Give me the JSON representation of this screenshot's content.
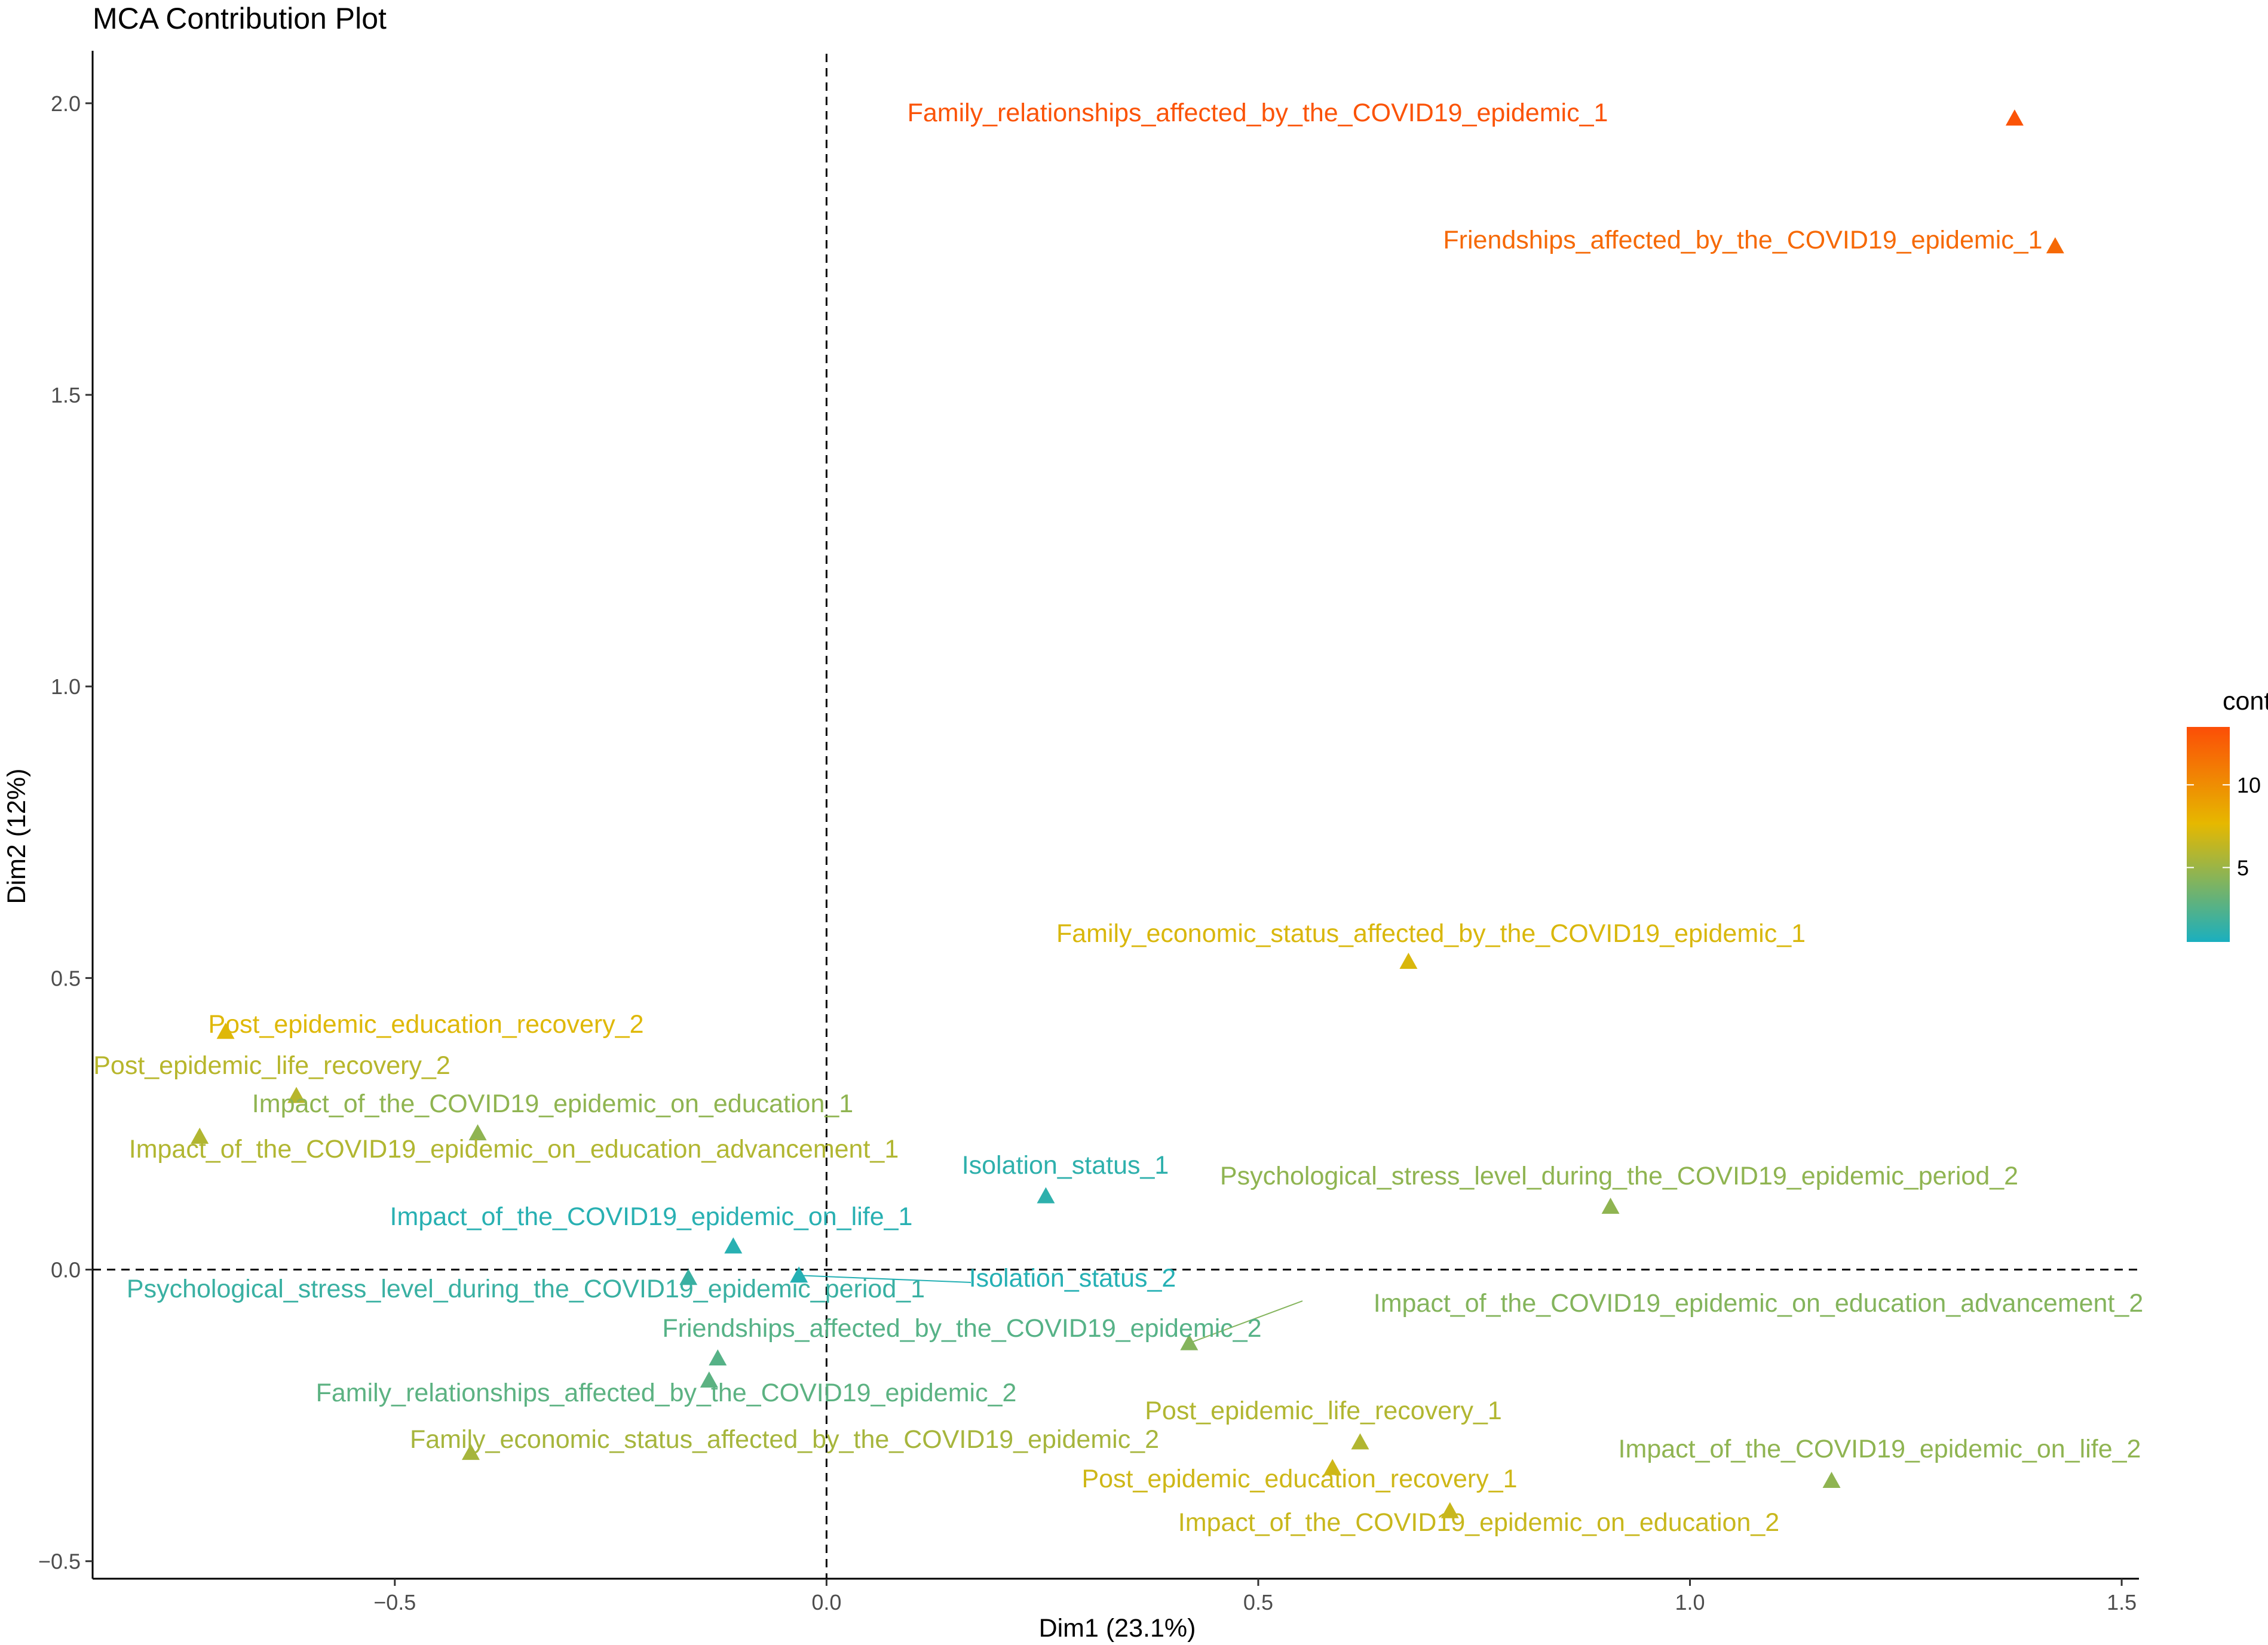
{
  "chart_data": {
    "type": "scatter",
    "title": "MCA Contribution Plot",
    "xlabel": "Dim1 (23.1%)",
    "ylabel": "Dim2 (12%)",
    "xlim": [
      -0.85,
      1.52
    ],
    "ylim": [
      -0.53,
      2.09
    ],
    "xticks": [
      -0.5,
      0.0,
      0.5,
      1.0,
      1.5
    ],
    "xtick_labels": [
      "−0.5",
      "0.0",
      "0.5",
      "1.0",
      "1.5"
    ],
    "yticks": [
      -0.5,
      0.0,
      0.5,
      1.0,
      1.5,
      2.0
    ],
    "ytick_labels": [
      "−0.5",
      "0.0",
      "0.5",
      "1.0",
      "1.5",
      "2.0"
    ],
    "reference_lines": {
      "x": 0,
      "y": 0,
      "style": "dashed"
    },
    "grid": false,
    "marker": "triangle",
    "legend": {
      "title": "contrib",
      "placement": "right",
      "min": 0.5,
      "max": 13.5,
      "ticks": [
        5,
        10
      ],
      "tick_labels": [
        "5",
        "10"
      ],
      "gradient": [
        "#1AAFBF",
        "#E6B800",
        "#FC4E07"
      ]
    },
    "points": [
      {
        "label": "Family_relationships_affected_by_the_COVID19_epidemic_1",
        "x": 1.376,
        "y": 1.974,
        "contrib": 13.2
      },
      {
        "label": "Friendships_affected_by_the_COVID19_epidemic_1",
        "x": 1.423,
        "y": 1.755,
        "contrib": 12.0
      },
      {
        "label": "Family_economic_status_affected_by_the_COVID19_epidemic_1",
        "x": 0.674,
        "y": 0.528,
        "contrib": 7.2
      },
      {
        "label": "Post_epidemic_education_recovery_2",
        "x": -0.696,
        "y": 0.408,
        "contrib": 7.4
      },
      {
        "label": "Post_epidemic_life_recovery_2",
        "x": -0.614,
        "y": 0.298,
        "contrib": 6.0
      },
      {
        "label": "Impact_of_the_COVID19_epidemic_on_education_1",
        "x": -0.404,
        "y": 0.234,
        "contrib": 4.6
      },
      {
        "label": "Impact_of_the_COVID19_epidemic_on_education_advancement_1",
        "x": -0.726,
        "y": 0.228,
        "contrib": 5.8
      },
      {
        "label": "Isolation_status_1",
        "x": 0.254,
        "y": 0.126,
        "contrib": 1.2
      },
      {
        "label": "Psychological_stress_level_during_the_COVID19_epidemic_period_2",
        "x": 0.908,
        "y": 0.108,
        "contrib": 4.6
      },
      {
        "label": "Impact_of_the_COVID19_epidemic_on_life_1",
        "x": -0.108,
        "y": 0.04,
        "contrib": 1.0
      },
      {
        "label": "Psychological_stress_level_during_the_COVID19_epidemic_period_1",
        "x": -0.16,
        "y": -0.014,
        "contrib": 1.6
      },
      {
        "label": "Isolation_status_2",
        "x": -0.032,
        "y": -0.01,
        "contrib": 0.9
      },
      {
        "label": "Impact_of_the_COVID19_epidemic_on_education_advancement_2",
        "x": 0.42,
        "y": -0.126,
        "contrib": 4.2
      },
      {
        "label": "Friendships_affected_by_the_COVID19_epidemic_2",
        "x": -0.126,
        "y": -0.152,
        "contrib": 2.6
      },
      {
        "label": "Family_relationships_affected_by_the_COVID19_epidemic_2",
        "x": -0.136,
        "y": -0.19,
        "contrib": 2.8
      },
      {
        "label": "Family_economic_status_affected_by_the_COVID19_epidemic_2",
        "x": -0.412,
        "y": -0.314,
        "contrib": 5.4
      },
      {
        "label": "Post_epidemic_life_recovery_1",
        "x": 0.618,
        "y": -0.296,
        "contrib": 5.8
      },
      {
        "label": "Post_epidemic_education_recovery_1",
        "x": 0.586,
        "y": -0.34,
        "contrib": 6.8
      },
      {
        "label": "Impact_of_the_COVID19_epidemic_on_life_2",
        "x": 1.164,
        "y": -0.362,
        "contrib": 4.6
      },
      {
        "label": "Impact_of_the_COVID19_epidemic_on_education_2",
        "x": 0.722,
        "y": -0.414,
        "contrib": 6.6
      }
    ]
  }
}
